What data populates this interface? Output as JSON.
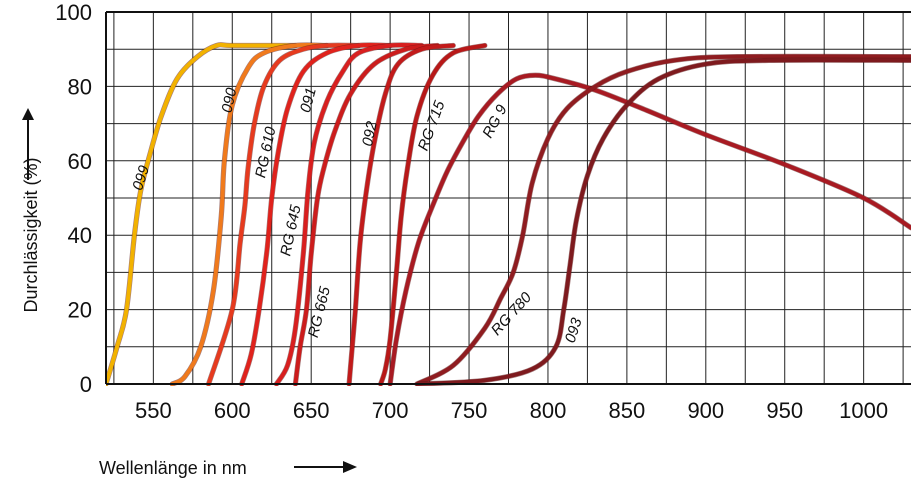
{
  "chart_data": {
    "type": "line",
    "title": "",
    "xlabel": "Wellenlänge in nm",
    "ylabel": "Durchlässigkeit (%)",
    "xlim": [
      520,
      1030
    ],
    "ylim": [
      0,
      100
    ],
    "x_ticks": [
      "550",
      "600",
      "650",
      "700",
      "750",
      "800",
      "850",
      "900",
      "950",
      "1000"
    ],
    "y_ticks": [
      "0",
      "20",
      "40",
      "60",
      "80",
      "100"
    ],
    "grid": true,
    "series": [
      {
        "name": "099",
        "color": "#f2b200",
        "width": 4,
        "x": [
          520,
          527,
          533,
          538,
          542,
          548,
          555,
          565,
          578,
          590,
          600,
          640
        ],
        "y": [
          0,
          10,
          20,
          40,
          52,
          62,
          72,
          82,
          88,
          91,
          91,
          91
        ]
      },
      {
        "name": "090",
        "color": "#f07a1c",
        "width": 4,
        "x": [
          562,
          570,
          580,
          588,
          593,
          595,
          600,
          610,
          620,
          640,
          660
        ],
        "y": [
          0,
          2,
          10,
          25,
          45,
          60,
          75,
          85,
          89,
          91,
          91
        ]
      },
      {
        "name": "RG 610",
        "color": "#e63a1e",
        "width": 4,
        "x": [
          585,
          600,
          605,
          608,
          610,
          614,
          620,
          630,
          645,
          660,
          680
        ],
        "y": [
          0,
          20,
          38,
          48,
          58,
          70,
          80,
          87,
          90,
          91,
          91
        ]
      },
      {
        "name": "RG 645",
        "color": "#e0221c",
        "width": 4,
        "x": [
          606,
          612,
          617,
          622,
          625,
          629,
          635,
          645,
          660,
          680,
          700
        ],
        "y": [
          0,
          8,
          20,
          36,
          50,
          62,
          74,
          84,
          89,
          91,
          91
        ]
      },
      {
        "name": "091",
        "color": "#d81f1f",
        "width": 4,
        "x": [
          628,
          635,
          640,
          645,
          648,
          652,
          660,
          670,
          680,
          700,
          720
        ],
        "y": [
          0,
          5,
          15,
          35,
          52,
          65,
          76,
          84,
          89,
          91,
          91
        ]
      },
      {
        "name": "RG 665",
        "color": "#cc1c1c",
        "width": 4,
        "x": [
          640,
          643,
          647,
          650,
          654,
          658,
          665,
          675,
          690,
          710,
          730
        ],
        "y": [
          0,
          10,
          20,
          35,
          50,
          58,
          68,
          78,
          86,
          90,
          91
        ]
      },
      {
        "name": "092",
        "color": "#c21a1a",
        "width": 4,
        "x": [
          674,
          676,
          678,
          681,
          685,
          690,
          697,
          705,
          720,
          740
        ],
        "y": [
          0,
          10,
          20,
          38,
          52,
          65,
          78,
          86,
          90,
          91
        ]
      },
      {
        "name": "RG 715",
        "color": "#b81818",
        "width": 4,
        "x": [
          694,
          697,
          700,
          704,
          707,
          711,
          717,
          727,
          740,
          760
        ],
        "y": [
          0,
          4,
          12,
          30,
          45,
          58,
          72,
          83,
          89,
          91
        ]
      },
      {
        "name": "RG 9",
        "color": "#a81a22",
        "width": 4,
        "x": [
          700,
          704,
          710,
          718,
          727,
          736,
          746,
          756,
          768,
          780,
          792,
          805,
          830,
          860,
          900,
          950,
          1000,
          1030
        ],
        "y": [
          0,
          12,
          25,
          38,
          48,
          57,
          65,
          72,
          78,
          82,
          83,
          82,
          79,
          74,
          67,
          59,
          50,
          42
        ]
      },
      {
        "name": "RG 780",
        "color": "#8f1c20",
        "width": 4,
        "x": [
          717,
          740,
          760,
          770,
          778,
          784,
          790,
          800,
          812,
          830,
          850,
          880,
          920,
          1030
        ],
        "y": [
          0,
          5,
          15,
          23,
          30,
          40,
          54,
          66,
          74,
          80,
          84,
          87,
          88,
          88
        ]
      },
      {
        "name": "093",
        "color": "#7e1a1e",
        "width": 4,
        "x": [
          718,
          760,
          790,
          805,
          810,
          814,
          818,
          825,
          835,
          850,
          870,
          900,
          940,
          1030
        ],
        "y": [
          0,
          1,
          4,
          10,
          20,
          32,
          44,
          56,
          66,
          75,
          82,
          86,
          87,
          87
        ]
      }
    ],
    "curve_labels": [
      {
        "series": "099",
        "text": "099",
        "x": 545,
        "y": 55,
        "angle": 72
      },
      {
        "series": "090",
        "text": "090",
        "x": 601,
        "y": 76,
        "angle": 78
      },
      {
        "series": "RG 610",
        "text": "RG 610",
        "x": 624,
        "y": 62,
        "angle": 78
      },
      {
        "series": "091",
        "text": "091",
        "x": 651,
        "y": 76,
        "angle": 75
      },
      {
        "series": "RG 645",
        "text": "RG 645",
        "x": 640,
        "y": 41,
        "angle": 78
      },
      {
        "series": "RG 665",
        "text": "RG 665",
        "x": 658,
        "y": 19,
        "angle": 76
      },
      {
        "series": "092",
        "text": "092",
        "x": 690,
        "y": 67,
        "angle": 78
      },
      {
        "series": "RG 715",
        "text": "RG 715",
        "x": 729,
        "y": 69,
        "angle": 70
      },
      {
        "series": "RG 9",
        "text": "RG 9",
        "x": 769,
        "y": 70,
        "angle": 62
      },
      {
        "series": "RG 780",
        "text": "RG 780",
        "x": 779,
        "y": 18,
        "angle": 48
      },
      {
        "series": "093",
        "text": "093",
        "x": 819,
        "y": 14,
        "angle": 72
      }
    ]
  }
}
